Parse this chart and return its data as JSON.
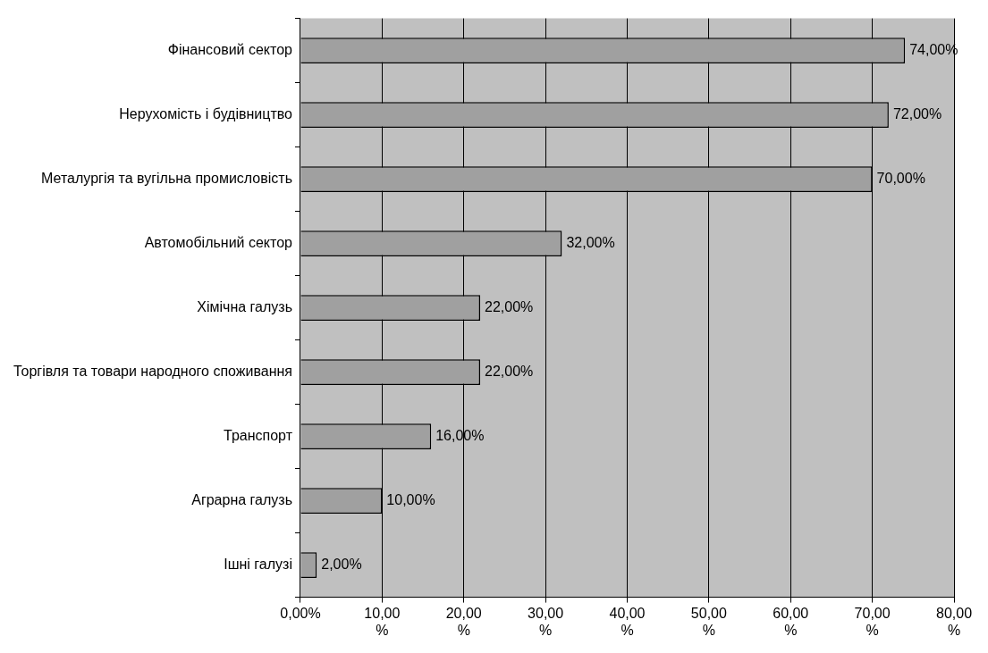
{
  "chart_data": {
    "type": "bar",
    "orientation": "horizontal",
    "categories": [
      "Фінансовий сектор",
      "Нерухомість і будівництво",
      "Металургія та вугільна промисловість",
      "Автомобільний сектор",
      "Хімічна галузь",
      "Торгівля та товари народного споживання",
      "Транспорт",
      "Аграрна галузь",
      "Ішні галузі"
    ],
    "values": [
      74,
      72,
      70,
      32,
      22,
      22,
      16,
      10,
      2
    ],
    "value_labels": [
      "74,00%",
      "72,00%",
      "70,00%",
      "32,00%",
      "22,00%",
      "22,00%",
      "16,00%",
      "10,00%",
      "2,00%"
    ],
    "color": "#a0a0a0",
    "xlim": [
      0,
      80
    ],
    "xticks": [
      {
        "value": 0,
        "label": "0,00%"
      },
      {
        "value": 10,
        "label": "10,00 %"
      },
      {
        "value": 20,
        "label": "20,00 %"
      },
      {
        "value": 30,
        "label": "30,00 %"
      },
      {
        "value": 40,
        "label": "40,00 %"
      },
      {
        "value": 50,
        "label": "50,00 %"
      },
      {
        "value": 60,
        "label": "60,00 %"
      },
      {
        "value": 70,
        "label": "70,00 %"
      },
      {
        "value": 80,
        "label": "80,00 %"
      }
    ],
    "grid": "x",
    "legend": false
  }
}
